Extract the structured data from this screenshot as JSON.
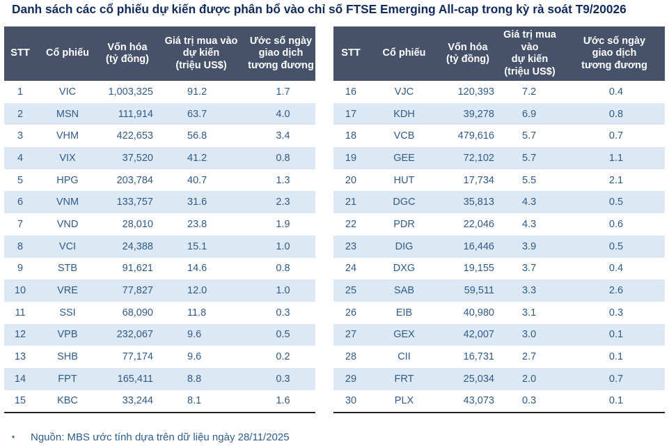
{
  "title": "Danh sách các cổ phiếu dự kiến được phân bổ vào chỉ số FTSE Emerging All-cap trong kỳ rà soát T9/20026",
  "columns": {
    "stt": "STT",
    "stock": "Cổ phiếu",
    "cap_line1": "Vốn hóa",
    "cap_line2": "(tỷ đồng)",
    "buy_line1": "Giá trị mua vào",
    "buy_line2": "dự kiến",
    "buy_line3": "(triệu US$)",
    "days_line1": "Ước số ngày",
    "days_line2": "giao dịch",
    "days_line3": "tương đương"
  },
  "left_rows": [
    {
      "stt": "1",
      "stock": "VIC",
      "cap": "1,003,325",
      "buy": "91.2",
      "days": "1.7"
    },
    {
      "stt": "2",
      "stock": "MSN",
      "cap": "111,914",
      "buy": "63.7",
      "days": "4.0"
    },
    {
      "stt": "3",
      "stock": "VHM",
      "cap": "422,653",
      "buy": "56.8",
      "days": "3.4"
    },
    {
      "stt": "4",
      "stock": "VIX",
      "cap": "37,520",
      "buy": "41.2",
      "days": "0.8"
    },
    {
      "stt": "5",
      "stock": "HPG",
      "cap": "203,784",
      "buy": "40.7",
      "days": "1.3"
    },
    {
      "stt": "6",
      "stock": "VNM",
      "cap": "133,757",
      "buy": "31.6",
      "days": "2.3"
    },
    {
      "stt": "7",
      "stock": "VND",
      "cap": "28,010",
      "buy": "23.8",
      "days": "1.9"
    },
    {
      "stt": "8",
      "stock": "VCI",
      "cap": "24,388",
      "buy": "15.1",
      "days": "1.0"
    },
    {
      "stt": "9",
      "stock": "STB",
      "cap": "91,621",
      "buy": "14.6",
      "days": "0.8"
    },
    {
      "stt": "10",
      "stock": "VRE",
      "cap": "77,827",
      "buy": "12.0",
      "days": "1.0"
    },
    {
      "stt": "11",
      "stock": "SSI",
      "cap": "68,090",
      "buy": "11.8",
      "days": "0.3"
    },
    {
      "stt": "12",
      "stock": "VPB",
      "cap": "232,067",
      "buy": "9.6",
      "days": "0.5"
    },
    {
      "stt": "13",
      "stock": "SHB",
      "cap": "77,174",
      "buy": "9.6",
      "days": "0.2"
    },
    {
      "stt": "14",
      "stock": "FPT",
      "cap": "165,411",
      "buy": "8.8",
      "days": "0.3"
    },
    {
      "stt": "15",
      "stock": "KBC",
      "cap": "33,244",
      "buy": "8.1",
      "days": "1.6"
    }
  ],
  "right_rows": [
    {
      "stt": "16",
      "stock": "VJC",
      "cap": "120,393",
      "buy": "7.2",
      "days": "0.4"
    },
    {
      "stt": "17",
      "stock": "KDH",
      "cap": "39,278",
      "buy": "6.9",
      "days": "0.8"
    },
    {
      "stt": "18",
      "stock": "VCB",
      "cap": "479,616",
      "buy": "5.7",
      "days": "0.7"
    },
    {
      "stt": "19",
      "stock": "GEE",
      "cap": "72,102",
      "buy": "5.7",
      "days": "1.1"
    },
    {
      "stt": "20",
      "stock": "HUT",
      "cap": "17,734",
      "buy": "5.5",
      "days": "2.1"
    },
    {
      "stt": "21",
      "stock": "DGC",
      "cap": "35,813",
      "buy": "4.3",
      "days": "0.5"
    },
    {
      "stt": "22",
      "stock": "PDR",
      "cap": "22,046",
      "buy": "4.3",
      "days": "0.6"
    },
    {
      "stt": "23",
      "stock": "DIG",
      "cap": "16,446",
      "buy": "3.9",
      "days": "0.5"
    },
    {
      "stt": "24",
      "stock": "DXG",
      "cap": "19,155",
      "buy": "3.7",
      "days": "0.4"
    },
    {
      "stt": "25",
      "stock": "SAB",
      "cap": "59,511",
      "buy": "3.3",
      "days": "2.6"
    },
    {
      "stt": "26",
      "stock": "EIB",
      "cap": "40,980",
      "buy": "3.1",
      "days": "0.3"
    },
    {
      "stt": "27",
      "stock": "GEX",
      "cap": "42,007",
      "buy": "3.0",
      "days": "0.1"
    },
    {
      "stt": "28",
      "stock": "CII",
      "cap": "16,731",
      "buy": "2.7",
      "days": "0.1"
    },
    {
      "stt": "29",
      "stock": "FRT",
      "cap": "25,034",
      "buy": "2.0",
      "days": "0.7"
    },
    {
      "stt": "30",
      "stock": "PLX",
      "cap": "43,073",
      "buy": "0.3",
      "days": "0.1"
    }
  ],
  "footer": {
    "bullet": "•",
    "text": "Nguồn: MBS ước tính dựa trên dữ liệu ngày 28/11/2025"
  },
  "colors": {
    "header_bg": "#455269",
    "stripe_bg": "#dde8f5",
    "title_color": "#102a5c",
    "body_text": "#2f5a8a"
  }
}
